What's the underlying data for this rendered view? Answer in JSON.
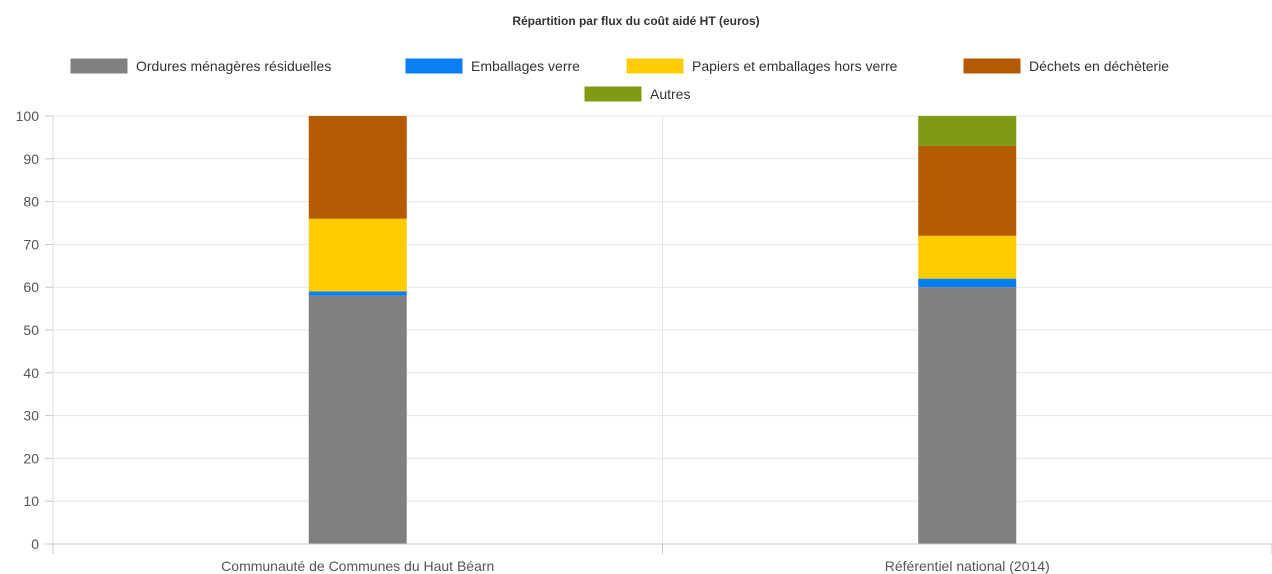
{
  "chart_data": {
    "type": "bar",
    "stacked": true,
    "title": "Répartition par flux du coût aidé HT (euros)",
    "xlabel": "",
    "ylabel": "",
    "ylim": [
      0,
      100
    ],
    "yticks": [
      0,
      10,
      20,
      30,
      40,
      50,
      60,
      70,
      80,
      90,
      100
    ],
    "grid": true,
    "legend_position": "top",
    "categories": [
      "Communauté de Communes du Haut Béarn",
      "Référentiel national (2014)"
    ],
    "series": [
      {
        "name": "Ordures ménagères résiduelles",
        "color": "#808080",
        "values": [
          58,
          60
        ]
      },
      {
        "name": "Emballages verre",
        "color": "#0a7ff5",
        "values": [
          1,
          2
        ]
      },
      {
        "name": "Papiers et emballages hors verre",
        "color": "#ffcc00",
        "values": [
          17,
          10
        ]
      },
      {
        "name": "Déchets en déchèterie",
        "color": "#b45a00",
        "values": [
          24,
          21
        ]
      },
      {
        "name": "Autres",
        "color": "#7f9a14",
        "values": [
          0,
          7
        ]
      }
    ]
  }
}
